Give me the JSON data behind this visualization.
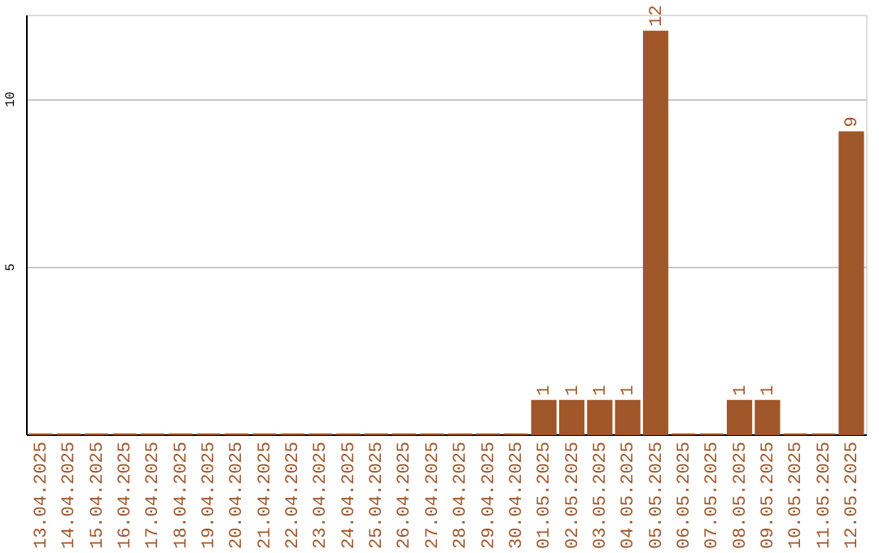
{
  "chart_data": {
    "type": "bar",
    "categories": [
      "13.04.2025",
      "14.04.2025",
      "15.04.2025",
      "16.04.2025",
      "17.04.2025",
      "18.04.2025",
      "19.04.2025",
      "20.04.2025",
      "21.04.2025",
      "22.04.2025",
      "23.04.2025",
      "24.04.2025",
      "25.04.2025",
      "26.04.2025",
      "27.04.2025",
      "28.04.2025",
      "29.04.2025",
      "30.04.2025",
      "01.05.2025",
      "02.05.2025",
      "03.05.2025",
      "04.05.2025",
      "05.05.2025",
      "06.05.2025",
      "07.05.2025",
      "08.05.2025",
      "09.05.2025",
      "10.05.2025",
      "11.05.2025",
      "12.05.2025"
    ],
    "values": [
      0,
      0,
      0,
      0,
      0,
      0,
      0,
      0,
      0,
      0,
      0,
      0,
      0,
      0,
      0,
      0,
      0,
      0,
      1,
      1,
      1,
      1,
      12,
      0,
      0,
      1,
      1,
      0,
      0,
      9
    ],
    "value_labels": [
      null,
      null,
      null,
      null,
      null,
      null,
      null,
      null,
      null,
      null,
      null,
      null,
      null,
      null,
      null,
      null,
      null,
      null,
      "1",
      "1",
      "1",
      "1",
      "12",
      null,
      null,
      "1",
      "1",
      null,
      null,
      "9"
    ],
    "color": "#a0572a",
    "ylim": [
      0,
      12.5
    ],
    "yticks": [
      5,
      10
    ],
    "grid": "y"
  }
}
